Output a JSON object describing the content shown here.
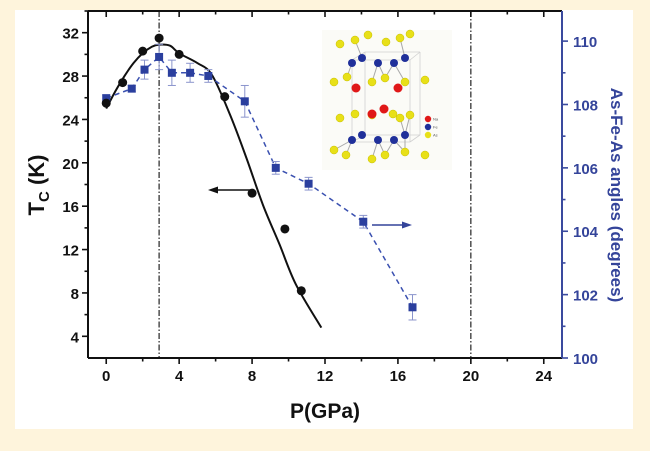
{
  "chart_data": {
    "type": "scatter",
    "xlabel": "P(GPa)",
    "ylabel": {
      "main": "T",
      "sub": "C",
      "unit": " (K)"
    },
    "ylabel_right": "As-Fe-As angles (degrees)",
    "xlim": [
      -1,
      25
    ],
    "ylim": [
      2,
      34
    ],
    "ylim_right": [
      100,
      110.95
    ],
    "x_ticks": [
      0,
      4,
      8,
      12,
      16,
      20,
      24
    ],
    "x_tick_labels": [
      "0",
      "4",
      "8",
      "12",
      "16",
      "20",
      "24"
    ],
    "y_ticks": [
      4,
      8,
      12,
      16,
      20,
      24,
      28,
      32
    ],
    "y_tick_labels": [
      "4",
      "8",
      "12",
      "16",
      "20",
      "24",
      "28",
      "32"
    ],
    "y_right_ticks": [
      100,
      102,
      104,
      106,
      108,
      110
    ],
    "y_right_tick_labels": [
      "100",
      "102",
      "104",
      "106",
      "108",
      "110"
    ],
    "grid": false,
    "reference_lines_x": [
      2.9,
      20
    ],
    "series": [
      {
        "name": "Tc",
        "axis": "left",
        "marker": "circle",
        "color": "#000000",
        "x": [
          0,
          0.9,
          2.0,
          2.9,
          4.0,
          6.5,
          8.0,
          9.8,
          10.7
        ],
        "y": [
          25.5,
          27.4,
          30.3,
          31.5,
          30.0,
          26.1,
          17.2,
          13.9,
          8.2
        ]
      },
      {
        "name": "Tc fit",
        "axis": "left",
        "type": "line",
        "color": "#000000",
        "x": [
          0,
          0.5,
          1,
          1.5,
          2,
          2.5,
          2.9,
          3.5,
          4,
          5,
          5.8,
          6.8,
          7.7,
          8.6,
          9.5,
          10.4,
          11.8
        ],
        "y": [
          25.0,
          26.6,
          28.0,
          29.2,
          30.1,
          30.7,
          30.9,
          30.8,
          30.1,
          29.2,
          28.1,
          24.4,
          20.4,
          16.1,
          12.5,
          8.8,
          4.8
        ]
      },
      {
        "name": "As-Fe-As angle",
        "axis": "right",
        "marker": "square",
        "color": "#2B3F9E",
        "x": [
          0,
          1.4,
          2.1,
          2.9,
          3.6,
          4.6,
          5.6,
          7.6,
          9.3,
          11.1,
          14.1,
          16.8
        ],
        "y": [
          108.2,
          108.5,
          109.1,
          109.5,
          109.0,
          109.0,
          108.9,
          108.1,
          106.0,
          105.5,
          104.3,
          101.6
        ],
        "err": [
          0.1,
          0.1,
          0.3,
          0.4,
          0.4,
          0.3,
          0.2,
          0.5,
          0.2,
          0.2,
          0.2,
          0.4
        ]
      }
    ],
    "annotations": [
      {
        "type": "arrow",
        "direction": "left",
        "series": "Tc"
      },
      {
        "type": "arrow",
        "direction": "right",
        "series": "As-Fe-As angle"
      }
    ],
    "inset": {
      "description_type": "crystal-structure",
      "legend": [
        {
          "label": "Na",
          "color": "#E01818"
        },
        {
          "label": "Fe",
          "color": "#20309A"
        },
        {
          "label": "As",
          "color": "#E8E018"
        }
      ]
    }
  }
}
